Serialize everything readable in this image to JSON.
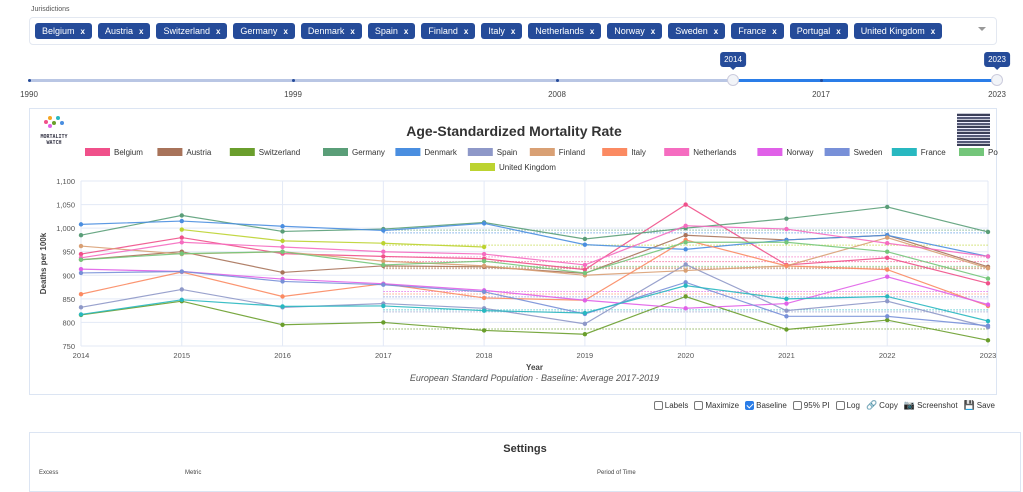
{
  "jurisdictions": {
    "label": "Jurisdictions",
    "chips": [
      "Belgium",
      "Austria",
      "Switzerland",
      "Germany",
      "Denmark",
      "Spain",
      "Finland",
      "Italy",
      "Netherlands",
      "Norway",
      "Sweden",
      "France",
      "Portugal",
      "United Kingdom"
    ],
    "remove_glyph": "x"
  },
  "year_slider": {
    "min": 1990,
    "max": 2023,
    "selected_from": "2014",
    "selected_to": "2023",
    "ticks": [
      "1990",
      "1999",
      "2008",
      "2017",
      "2023"
    ]
  },
  "chart_card": {
    "logo_line1": "MORTALITY",
    "logo_line2": "WATCH"
  },
  "toolbar": {
    "labels": "Labels",
    "maximize": "Maximize",
    "baseline": "Baseline",
    "pi": "95% PI",
    "log": "Log",
    "copy": "Copy",
    "screenshot": "Screenshot",
    "save": "Save",
    "labels_checked": false,
    "maximize_checked": false,
    "baseline_checked": true,
    "pi_checked": false,
    "log_checked": false
  },
  "settings": {
    "title": "Settings",
    "excess_label": "Excess",
    "metric_label": "Metric",
    "period_label": "Period of Time"
  },
  "chart_data": {
    "type": "line",
    "title": "Age-Standardized Mortality Rate",
    "subtitle": "European Standard Population · Baseline: Average 2017-2019",
    "xlabel": "Year",
    "ylabel": "Deaths per 100k",
    "x": [
      2014,
      2015,
      2016,
      2017,
      2018,
      2019,
      2020,
      2021,
      2022,
      2023
    ],
    "ylim": [
      750,
      1100
    ],
    "yticks": [
      750,
      800,
      850,
      900,
      950,
      1000,
      1050,
      1100
    ],
    "ytick_labels": [
      "750",
      "800",
      "850",
      "900",
      "950",
      "1,000",
      "1,050",
      "1,100"
    ],
    "grid": true,
    "legend_position": "top",
    "baseline_years": [
      2017,
      2019
    ],
    "series": [
      {
        "name": "Belgium",
        "color": "#f0508a",
        "values": [
          945,
          980,
          946,
          940,
          935,
          912,
          1050,
          922,
          937,
          883
        ]
      },
      {
        "name": "Austria",
        "color": "#a8735a",
        "values": [
          933,
          950,
          906,
          920,
          918,
          904,
          985,
          975,
          985,
          918
        ]
      },
      {
        "name": "Switzerland",
        "color": "#6a9e2c",
        "values": [
          816,
          845,
          795,
          800,
          783,
          775,
          855,
          785,
          805,
          762
        ]
      },
      {
        "name": "Germany",
        "color": "#5a9e78",
        "values": [
          985,
          1027,
          993,
          998,
          1012,
          977,
          1000,
          1020,
          1045,
          992
        ]
      },
      {
        "name": "Denmark",
        "color": "#4a8ee0",
        "values": [
          1008,
          1015,
          1004,
          995,
          1010,
          965,
          955,
          975,
          985,
          940
        ]
      },
      {
        "name": "Spain",
        "color": "#8e98c8",
        "values": [
          832,
          870,
          832,
          840,
          830,
          797,
          923,
          825,
          845,
          790
        ]
      },
      {
        "name": "Finland",
        "color": "#d9a074",
        "values": [
          962,
          945,
          950,
          930,
          920,
          900,
          910,
          920,
          980,
          915
        ]
      },
      {
        "name": "Italy",
        "color": "#fb8a62",
        "values": [
          860,
          907,
          855,
          882,
          852,
          847,
          975,
          920,
          912,
          835
        ]
      },
      {
        "name": "Netherlands",
        "color": "#f56cc0",
        "values": [
          937,
          970,
          960,
          950,
          945,
          922,
          1005,
          998,
          968,
          940
        ]
      },
      {
        "name": "Norway",
        "color": "#e060e8",
        "values": [
          913,
          908,
          892,
          882,
          868,
          847,
          830,
          840,
          897,
          838
        ]
      },
      {
        "name": "Sweden",
        "color": "#7890d8",
        "values": [
          905,
          908,
          887,
          880,
          865,
          818,
          885,
          813,
          813,
          793
        ]
      },
      {
        "name": "France",
        "color": "#28b8c0",
        "values": [
          817,
          848,
          834,
          835,
          825,
          820,
          878,
          850,
          855,
          803
        ]
      },
      {
        "name": "Portugal",
        "color": "#74c67a",
        "values": [
          933,
          946,
          950,
          922,
          930,
          905,
          970,
          970,
          950,
          893
        ]
      },
      {
        "name": "United Kingdom",
        "color": "#bcd330",
        "values": [
          null,
          997,
          973,
          968,
          960,
          null,
          null,
          null,
          null,
          null
        ]
      }
    ]
  }
}
